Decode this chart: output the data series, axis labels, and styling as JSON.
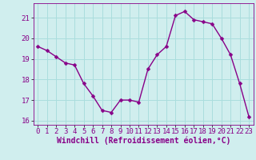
{
  "x": [
    0,
    1,
    2,
    3,
    4,
    5,
    6,
    7,
    8,
    9,
    10,
    11,
    12,
    13,
    14,
    15,
    16,
    17,
    18,
    19,
    20,
    21,
    22,
    23
  ],
  "y": [
    19.6,
    19.4,
    19.1,
    18.8,
    18.7,
    17.8,
    17.2,
    16.5,
    16.4,
    17.0,
    17.0,
    16.9,
    18.5,
    19.2,
    19.6,
    21.1,
    21.3,
    20.9,
    20.8,
    20.7,
    20.0,
    19.2,
    17.8,
    16.2
  ],
  "line_color": "#880088",
  "marker_color": "#880088",
  "bg_color": "#d0eeee",
  "grid_color": "#aadddd",
  "xlabel": "Windchill (Refroidissement éolien,°C)",
  "xlim": [
    -0.5,
    23.5
  ],
  "ylim": [
    15.8,
    21.7
  ],
  "yticks": [
    16,
    17,
    18,
    19,
    20,
    21
  ],
  "xticks": [
    0,
    1,
    2,
    3,
    4,
    5,
    6,
    7,
    8,
    9,
    10,
    11,
    12,
    13,
    14,
    15,
    16,
    17,
    18,
    19,
    20,
    21,
    22,
    23
  ],
  "xlabel_fontsize": 7.0,
  "tick_fontsize": 6.5,
  "line_width": 1.0,
  "marker_size": 2.5
}
